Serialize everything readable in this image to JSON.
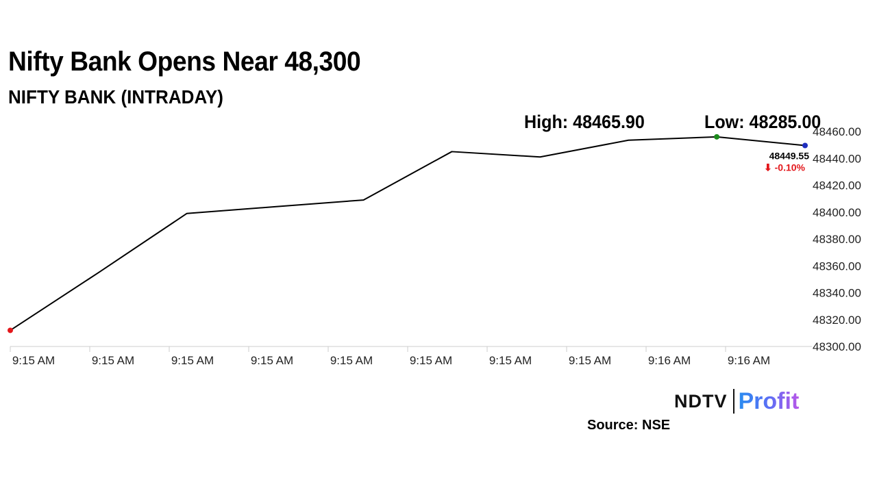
{
  "header": {
    "title": "Nifty Bank Opens Near 48,300",
    "subtitle": "NIFTY BANK (INTRADAY)"
  },
  "stats": {
    "high": "High: 48465.90",
    "low": "Low: 48285.00"
  },
  "chart_data": {
    "type": "line",
    "x": [
      "9:15 AM",
      "9:15 AM",
      "9:15 AM",
      "9:15 AM",
      "9:15 AM",
      "9:15 AM",
      "9:15 AM",
      "9:15 AM",
      "9:16 AM",
      "9:16 AM"
    ],
    "values": [
      48312,
      48355,
      48399,
      48404,
      48409,
      48445,
      48441,
      48453.5,
      48456,
      48449.55
    ],
    "ylim": [
      48300,
      48460
    ],
    "yticks": [
      "48300.00",
      "48320.00",
      "48340.00",
      "48360.00",
      "48380.00",
      "48400.00",
      "48420.00",
      "48440.00",
      "48460.00"
    ],
    "last_value_label": "48449.55",
    "change_label": "⬇ -0.10%",
    "colors": {
      "line": "#000000",
      "start_marker": "#e3171b",
      "high_marker": "#1b8a1b",
      "last_marker": "#1f2fbf",
      "change": "#e3171b",
      "axis": "#cccccc"
    }
  },
  "branding": {
    "logo_ndtv": "NDTV",
    "logo_profit": "Profit",
    "source": "Source: NSE"
  }
}
